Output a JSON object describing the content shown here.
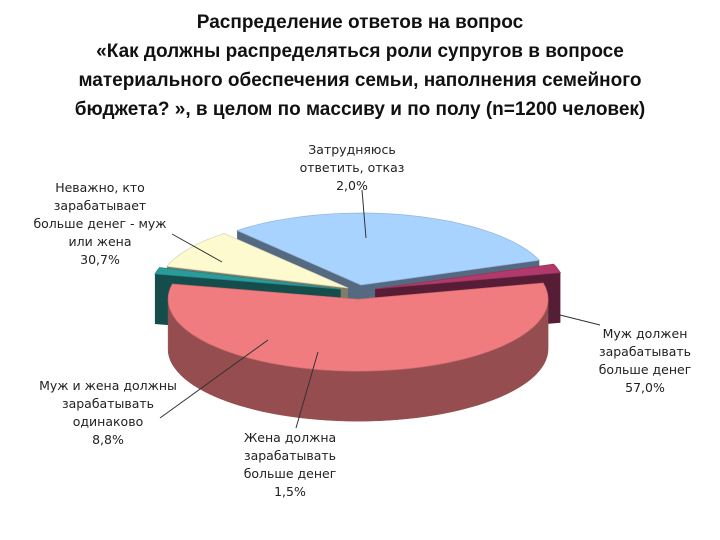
{
  "title_lines": [
    "Распределение ответов на вопрос",
    "«Как должны распределяться роли супругов в вопросе",
    "материального обеспечения семьи, наполнения семейного",
    "бюджета? », в целом по массиву и по полу (n=1200 человек)"
  ],
  "chart_data": {
    "type": "pie",
    "title": "Распределение ответов на вопрос «Как должны распределяться роли супругов в вопросе материального обеспечения семьи, наполнения семейного бюджета? », в целом по массиву и по полу (n=1200 человек)",
    "slices": [
      {
        "label_lines": [
          "Муж должен",
          "зарабатывать",
          "больше денег"
        ],
        "value": 57.0,
        "value_label": "57,0%",
        "color": "#f07c80"
      },
      {
        "label_lines": [
          "Жена должна",
          "зарабатывать",
          "больше денег"
        ],
        "value": 1.5,
        "value_label": "1,5%",
        "color": "#2a9a9a"
      },
      {
        "label_lines": [
          "Муж и жена должны",
          "зарабатывать",
          "одинаково"
        ],
        "value": 8.8,
        "value_label": "8,8%",
        "color": "#fefad0"
      },
      {
        "label_lines": [
          "Неважно, кто",
          "зарабатывает",
          "больше денег - муж",
          "или жена"
        ],
        "value": 30.7,
        "value_label": "30,7%",
        "color": "#a9d3ff"
      },
      {
        "label_lines": [
          "Затрудняюсь",
          "ответить, отказ"
        ],
        "value": 2.0,
        "value_label": "2,0%",
        "color": "#b03a6b"
      }
    ],
    "view": "3d-exploded",
    "legend": "none"
  }
}
